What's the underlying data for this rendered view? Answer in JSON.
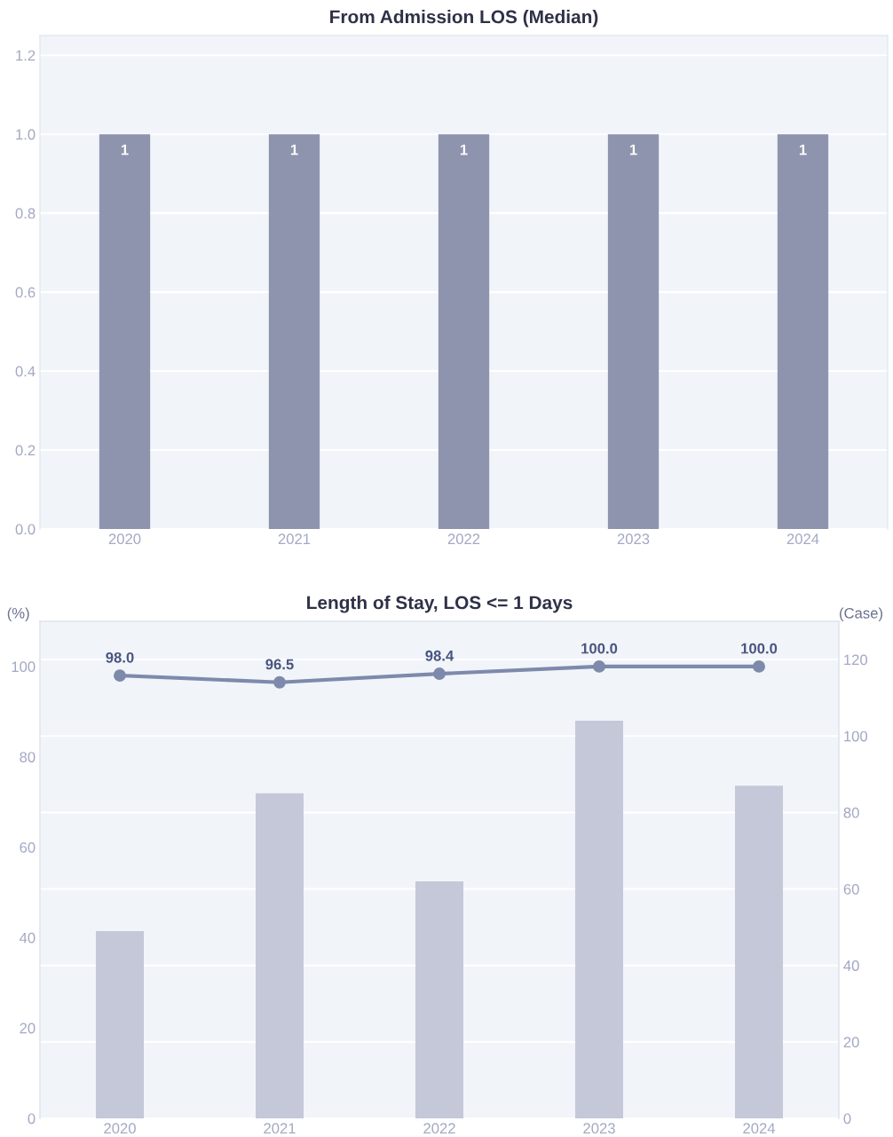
{
  "chart_data": [
    {
      "type": "bar",
      "title": "From Admission LOS (Median)",
      "categories": [
        "2020",
        "2021",
        "2022",
        "2023",
        "2024"
      ],
      "series": [
        {
          "color": "#8f94ae",
          "values": [
            1,
            1,
            1,
            1,
            1
          ]
        }
      ],
      "ylim": [
        0,
        1.25
      ],
      "yticks": [
        {
          "value": 0,
          "label": "0.0"
        },
        0.2,
        0.4,
        0.6,
        0.8,
        {
          "value": 1,
          "label": "1.0"
        },
        1.2
      ],
      "grid": "y",
      "data_labels": true
    },
    {
      "type": "bar",
      "title": "Length of Stay, LOS <= 1 Days",
      "ylabel": "(%)",
      "y2label": "(Case)",
      "categories": [
        "2020",
        "2021",
        "2022",
        "2023",
        "2024"
      ],
      "series": [
        {
          "type": "bar",
          "axis": "y2",
          "color": "#c5c8d8",
          "values": [
            49,
            85,
            62,
            104,
            87
          ]
        },
        {
          "type": "line",
          "axis": "y",
          "color": "#7d8aab",
          "values": [
            98.0,
            96.5,
            98.4,
            100.0,
            100.0
          ],
          "value_labels": [
            "98.0",
            "96.5",
            "98.4",
            "100.0",
            "100.0"
          ]
        }
      ],
      "ylim": [
        0,
        110
      ],
      "yticks": [
        0,
        20,
        40,
        60,
        80,
        100
      ],
      "y2lim": [
        0,
        130
      ],
      "y2ticks": [
        0,
        20,
        40,
        60,
        80,
        100,
        120
      ],
      "grid": "y2",
      "marker": "circle",
      "line_style": "solid"
    }
  ]
}
